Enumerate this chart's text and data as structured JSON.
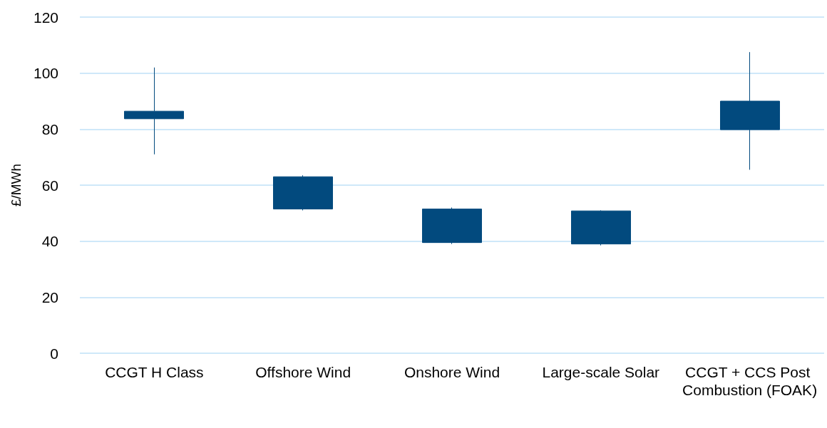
{
  "chart_data": {
    "type": "candlestick",
    "ylabel": "£/MWh",
    "categories": [
      "CCGT H Class",
      "Offshore Wind",
      "Onshore Wind",
      "Large-scale Solar",
      "CCGT + CCS Post Combustion (FOAK)"
    ],
    "ohlc": [
      [
        83.7,
        102,
        71,
        86.4
      ],
      [
        51.5,
        63.5,
        51,
        63
      ],
      [
        39.5,
        52,
        39,
        51.5
      ],
      [
        39,
        51,
        38.5,
        50.8
      ],
      [
        79.8,
        107.5,
        65.5,
        90
      ]
    ],
    "color": "#024a7e",
    "ylim": [
      0,
      120
    ],
    "yticks": [
      0,
      20,
      40,
      60,
      80,
      100,
      120
    ],
    "grid": "y"
  }
}
